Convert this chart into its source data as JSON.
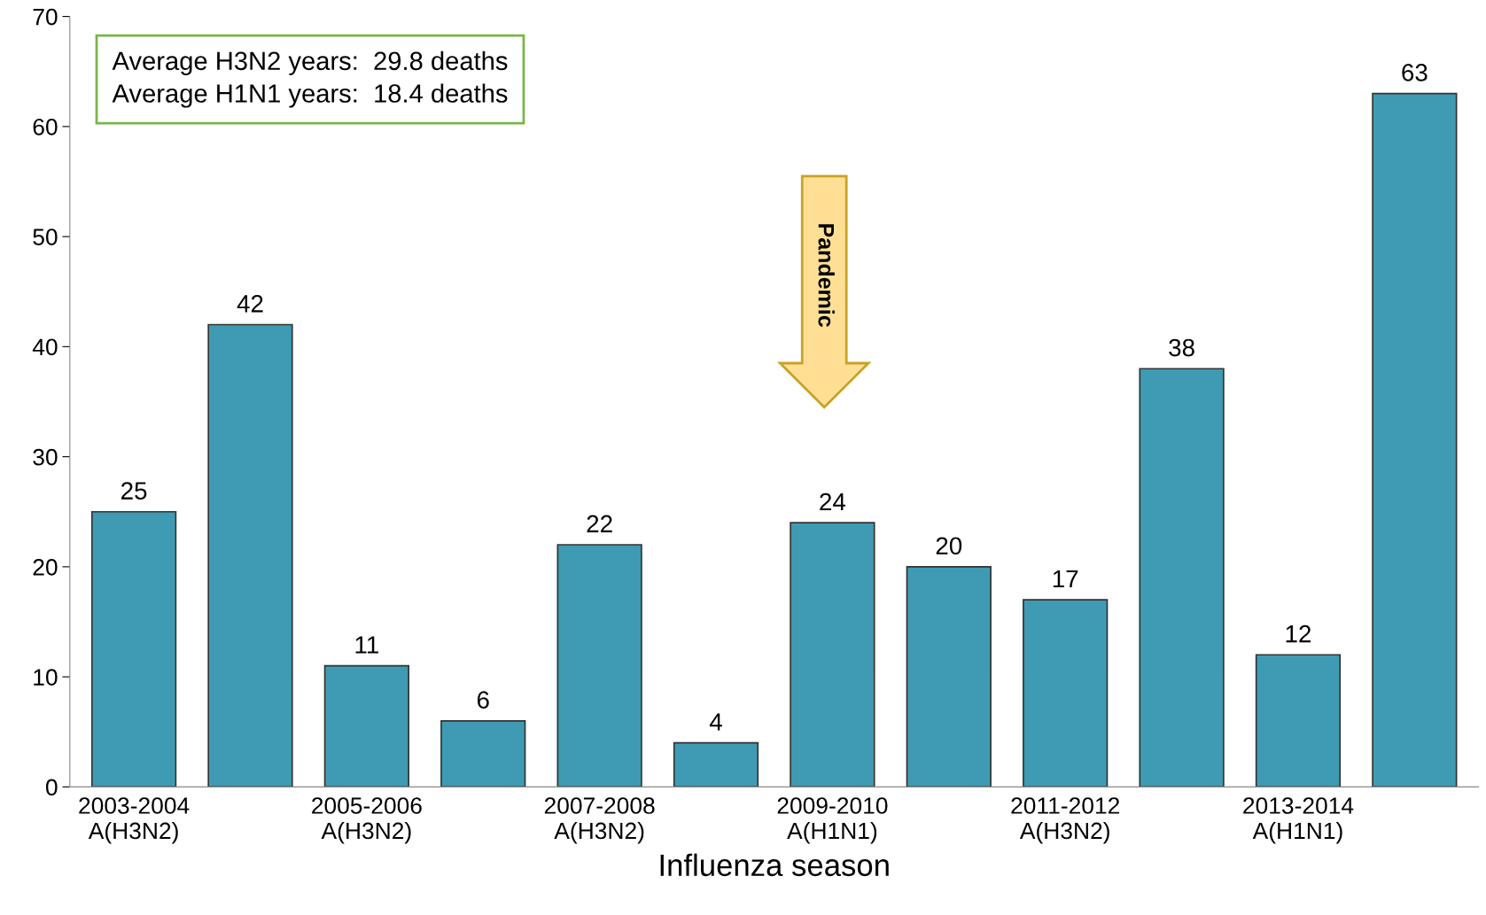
{
  "chart_data": {
    "type": "bar",
    "xlabel": "Influenza season",
    "categories": [
      "2003-2004\nA(H3N2)",
      null,
      "2005-2006\nA(H3N2)",
      null,
      "2007-2008\nA(H3N2)",
      null,
      "2009-2010\nA(H1N1)",
      null,
      "2011-2012\nA(H3N2)",
      null,
      "2013-2014\nA(H1N1)",
      null
    ],
    "values": [
      25,
      42,
      11,
      6,
      22,
      4,
      24,
      20,
      17,
      38,
      12,
      63
    ],
    "color": "#3e9bb3",
    "ylim": [
      0,
      70
    ],
    "yticks": [
      0,
      10,
      20,
      30,
      40,
      50,
      60,
      70
    ],
    "data_labels": true,
    "grid": false,
    "legend": false,
    "annotations": [
      "Average H3N2 years:  29.8 deaths\nAverage H1N1 years:  18.4 deaths",
      "Pandemic"
    ]
  }
}
